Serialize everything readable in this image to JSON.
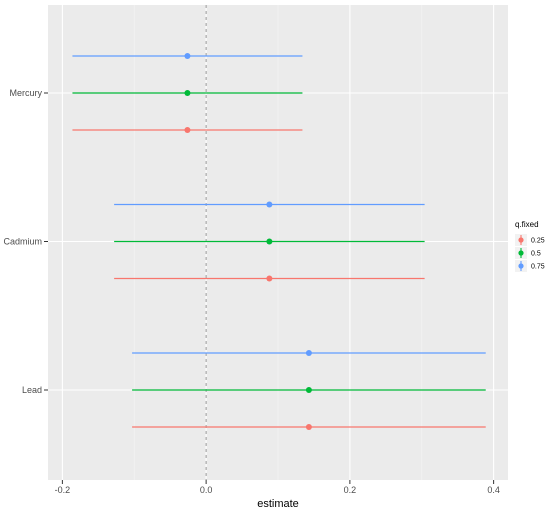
{
  "chart_data": {
    "type": "forest",
    "xlabel": "estimate",
    "ylabel": "",
    "xlim": [
      -0.22,
      0.42
    ],
    "x_ticks": [
      -0.2,
      0.0,
      0.2,
      0.4
    ],
    "x_tick_labels": [
      "-0.2",
      "0.0",
      "0.2",
      "0.4"
    ],
    "reference_line_x": 0,
    "grid": true,
    "legend_position": "right",
    "legend_title": "q.fixed",
    "categories": [
      "Mercury",
      "Cadmium",
      "Lead"
    ],
    "series": [
      {
        "name": "0.25",
        "color": "#F8766D",
        "points": [
          {
            "category": "Mercury",
            "estimate": -0.026,
            "lower": -0.186,
            "upper": 0.134
          },
          {
            "category": "Cadmium",
            "estimate": 0.088,
            "lower": -0.128,
            "upper": 0.304
          },
          {
            "category": "Lead",
            "estimate": 0.143,
            "lower": -0.103,
            "upper": 0.389
          }
        ]
      },
      {
        "name": "0.5",
        "color": "#00BA38",
        "points": [
          {
            "category": "Mercury",
            "estimate": -0.026,
            "lower": -0.186,
            "upper": 0.134
          },
          {
            "category": "Cadmium",
            "estimate": 0.088,
            "lower": -0.128,
            "upper": 0.304
          },
          {
            "category": "Lead",
            "estimate": 0.143,
            "lower": -0.103,
            "upper": 0.389
          }
        ]
      },
      {
        "name": "0.75",
        "color": "#619CFF",
        "points": [
          {
            "category": "Mercury",
            "estimate": -0.026,
            "lower": -0.186,
            "upper": 0.134
          },
          {
            "category": "Cadmium",
            "estimate": 0.088,
            "lower": -0.128,
            "upper": 0.304
          },
          {
            "category": "Lead",
            "estimate": 0.143,
            "lower": -0.103,
            "upper": 0.389
          }
        ]
      }
    ]
  }
}
